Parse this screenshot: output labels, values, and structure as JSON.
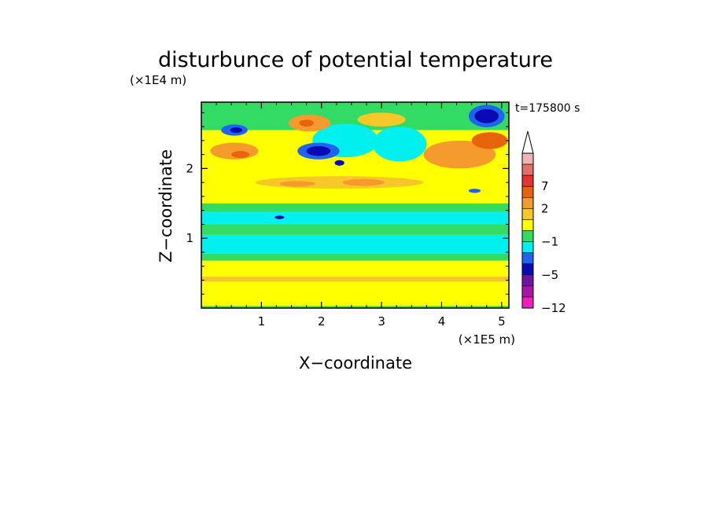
{
  "chart_data": {
    "type": "heatmap",
    "title": "disturbunce of potential temperature",
    "xlabel": "X−coordinate",
    "ylabel": "Z−coordinate",
    "x_unit": "(×1E5 m)",
    "y_unit": "(×1E4 m)",
    "time_label": "t=175800  s",
    "xlim": [
      0,
      5.12
    ],
    "ylim": [
      0,
      2.95
    ],
    "x_ticks": [
      {
        "value": 1,
        "label": "1"
      },
      {
        "value": 2,
        "label": "2"
      },
      {
        "value": 3,
        "label": "3"
      },
      {
        "value": 4,
        "label": "4"
      },
      {
        "value": 5,
        "label": "5"
      }
    ],
    "y_ticks": [
      {
        "value": 1,
        "label": "1"
      },
      {
        "value": 2,
        "label": "2"
      }
    ],
    "colorbar": {
      "levels": [
        {
          "label": "",
          "color": "#f0b4b4"
        },
        {
          "label": "",
          "color": "#e86e6e"
        },
        {
          "label": "7",
          "color": "#e83232"
        },
        {
          "label": "",
          "color": "#e8640a"
        },
        {
          "label": "2",
          "color": "#f59a2d"
        },
        {
          "label": "",
          "color": "#f5c828"
        },
        {
          "label": "",
          "color": "#ffff00"
        },
        {
          "label": "−1",
          "color": "#32dc64"
        },
        {
          "label": "",
          "color": "#00f0f0"
        },
        {
          "label": "",
          "color": "#1e64f0"
        },
        {
          "label": "−5",
          "color": "#0a0ab4"
        },
        {
          "label": "",
          "color": "#6e14a0"
        },
        {
          "label": "",
          "color": "#aa14aa"
        },
        {
          "label": "−12",
          "color": "#f01ebe"
        }
      ],
      "extend": "max"
    },
    "field": {
      "background_color": "#ffff00",
      "bands": [
        {
          "z": [
            0.0,
            0.03
          ],
          "color": "#32dc64"
        },
        {
          "z": [
            0.38,
            0.45
          ],
          "color": "#f5c828"
        },
        {
          "z": [
            0.68,
            0.78
          ],
          "color": "#32dc64"
        },
        {
          "z": [
            0.78,
            1.05
          ],
          "color": "#00f0f0"
        },
        {
          "z": [
            1.05,
            1.2
          ],
          "color": "#32dc64"
        },
        {
          "z": [
            1.2,
            1.38
          ],
          "color": "#00f0f0"
        },
        {
          "z": [
            1.38,
            1.5
          ],
          "color": "#32dc64"
        },
        {
          "z": [
            2.55,
            2.95
          ],
          "color": "#32dc64"
        }
      ],
      "blobs": [
        {
          "x": 2.3,
          "z": 1.8,
          "rx": 1.4,
          "rz": 0.09,
          "color": "#f5c828"
        },
        {
          "x": 2.7,
          "z": 1.8,
          "rx": 0.35,
          "rz": 0.05,
          "color": "#f59a2d"
        },
        {
          "x": 1.6,
          "z": 1.78,
          "rx": 0.3,
          "rz": 0.04,
          "color": "#f59a2d"
        },
        {
          "x": 2.4,
          "z": 2.4,
          "rx": 0.55,
          "rz": 0.24,
          "color": "#00f0f0"
        },
        {
          "x": 1.95,
          "z": 2.25,
          "rx": 0.35,
          "rz": 0.12,
          "color": "#1e64f0"
        },
        {
          "x": 1.95,
          "z": 2.25,
          "rx": 0.2,
          "rz": 0.07,
          "color": "#0a0ab4"
        },
        {
          "x": 2.3,
          "z": 2.08,
          "rx": 0.08,
          "rz": 0.04,
          "color": "#0a0ab4"
        },
        {
          "x": 0.55,
          "z": 2.25,
          "rx": 0.4,
          "rz": 0.12,
          "color": "#f59a2d"
        },
        {
          "x": 0.65,
          "z": 2.2,
          "rx": 0.15,
          "rz": 0.05,
          "color": "#e8640a"
        },
        {
          "x": 0.55,
          "z": 2.55,
          "rx": 0.22,
          "rz": 0.08,
          "color": "#1e64f0"
        },
        {
          "x": 0.58,
          "z": 2.55,
          "rx": 0.1,
          "rz": 0.04,
          "color": "#0a0ab4"
        },
        {
          "x": 1.8,
          "z": 2.65,
          "rx": 0.35,
          "rz": 0.12,
          "color": "#f59a2d"
        },
        {
          "x": 1.75,
          "z": 2.65,
          "rx": 0.12,
          "rz": 0.05,
          "color": "#e8640a"
        },
        {
          "x": 3.3,
          "z": 2.35,
          "rx": 0.45,
          "rz": 0.25,
          "color": "#00f0f0"
        },
        {
          "x": 4.3,
          "z": 2.2,
          "rx": 0.6,
          "rz": 0.2,
          "color": "#f59a2d"
        },
        {
          "x": 4.8,
          "z": 2.4,
          "rx": 0.3,
          "rz": 0.12,
          "color": "#e8640a"
        },
        {
          "x": 4.75,
          "z": 2.75,
          "rx": 0.3,
          "rz": 0.16,
          "color": "#1e64f0"
        },
        {
          "x": 4.75,
          "z": 2.75,
          "rx": 0.2,
          "rz": 0.1,
          "color": "#0a0ab4"
        },
        {
          "x": 3.0,
          "z": 2.7,
          "rx": 0.4,
          "rz": 0.1,
          "color": "#f5c828"
        },
        {
          "x": 4.55,
          "z": 1.68,
          "rx": 0.1,
          "rz": 0.03,
          "color": "#1e64f0"
        },
        {
          "x": 1.3,
          "z": 1.3,
          "rx": 0.08,
          "rz": 0.025,
          "color": "#0a0ab4"
        }
      ]
    }
  }
}
